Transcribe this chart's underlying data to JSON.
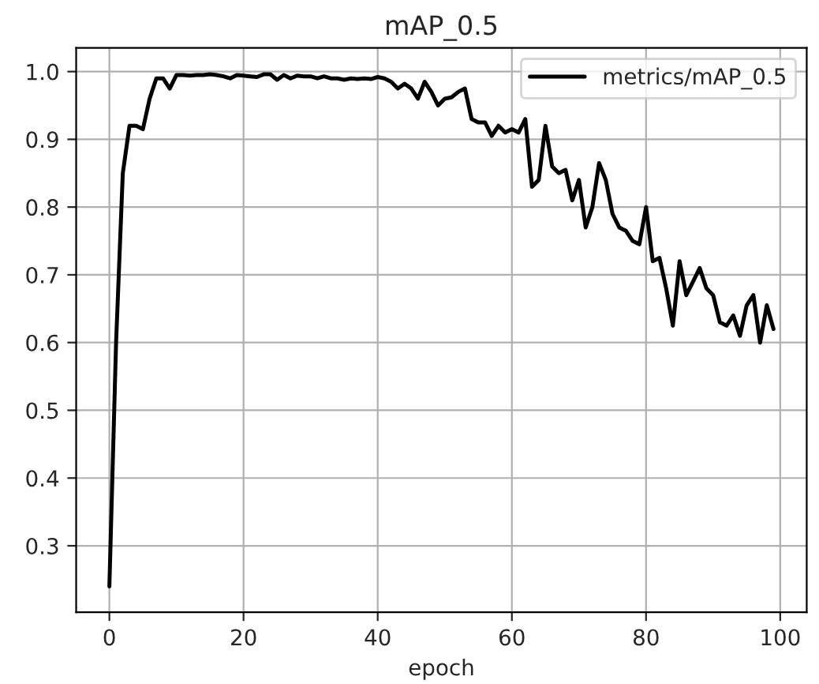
{
  "chart_data": {
    "type": "line",
    "title": "mAP_0.5",
    "xlabel": "epoch",
    "x": [
      0,
      1,
      2,
      3,
      4,
      5,
      6,
      7,
      8,
      9,
      10,
      11,
      12,
      13,
      14,
      15,
      16,
      17,
      18,
      19,
      20,
      21,
      22,
      23,
      24,
      25,
      26,
      27,
      28,
      29,
      30,
      31,
      32,
      33,
      34,
      35,
      36,
      37,
      38,
      39,
      40,
      41,
      42,
      43,
      44,
      45,
      46,
      47,
      48,
      49,
      50,
      51,
      52,
      53,
      54,
      55,
      56,
      57,
      58,
      59,
      60,
      61,
      62,
      63,
      64,
      65,
      66,
      67,
      68,
      69,
      70,
      71,
      72,
      73,
      74,
      75,
      76,
      77,
      78,
      79,
      80,
      81,
      82,
      83,
      84,
      85,
      86,
      87,
      88,
      89,
      90,
      91,
      92,
      93,
      94,
      95,
      96,
      97,
      98,
      99
    ],
    "series": [
      {
        "name": "metrics/mAP_0.5",
        "color": "#000000",
        "values": [
          0.24,
          0.6,
          0.85,
          0.92,
          0.92,
          0.915,
          0.96,
          0.99,
          0.99,
          0.975,
          0.995,
          0.995,
          0.994,
          0.995,
          0.995,
          0.996,
          0.995,
          0.993,
          0.99,
          0.995,
          0.994,
          0.993,
          0.992,
          0.996,
          0.996,
          0.988,
          0.995,
          0.99,
          0.994,
          0.993,
          0.993,
          0.99,
          0.993,
          0.99,
          0.99,
          0.988,
          0.99,
          0.989,
          0.99,
          0.989,
          0.992,
          0.99,
          0.985,
          0.975,
          0.982,
          0.975,
          0.96,
          0.985,
          0.97,
          0.95,
          0.96,
          0.962,
          0.97,
          0.975,
          0.93,
          0.925,
          0.925,
          0.905,
          0.92,
          0.91,
          0.915,
          0.91,
          0.93,
          0.83,
          0.84,
          0.92,
          0.86,
          0.85,
          0.855,
          0.81,
          0.84,
          0.77,
          0.8,
          0.865,
          0.84,
          0.79,
          0.77,
          0.765,
          0.75,
          0.745,
          0.8,
          0.72,
          0.725,
          0.68,
          0.625,
          0.72,
          0.67,
          0.69,
          0.71,
          0.68,
          0.67,
          0.63,
          0.625,
          0.64,
          0.61,
          0.655,
          0.67,
          0.6,
          0.655,
          0.62
        ]
      }
    ],
    "xlim": [
      -4.95,
      103.95
    ],
    "ylim": [
      0.202,
      1.035
    ],
    "xticks": [
      0,
      20,
      40,
      60,
      80,
      100
    ],
    "yticks": [
      {
        "value": 0.3,
        "label": "0.3"
      },
      {
        "value": 0.4,
        "label": "0.4"
      },
      {
        "value": 0.5,
        "label": "0.5"
      },
      {
        "value": 0.6,
        "label": "0.6"
      },
      {
        "value": 0.7,
        "label": "0.7"
      },
      {
        "value": 0.8,
        "label": "0.8"
      },
      {
        "value": 0.9,
        "label": "0.9"
      },
      {
        "value": 1.0,
        "label": "1.0"
      }
    ],
    "grid": true,
    "legend": "top right",
    "line_style": "solid"
  }
}
